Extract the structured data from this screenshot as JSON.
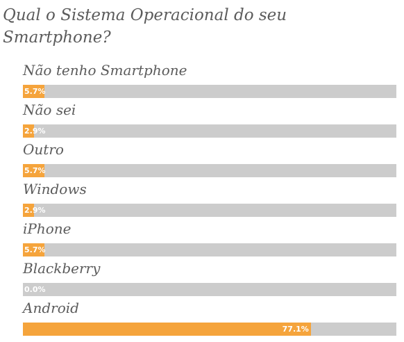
{
  "title": "Qual o Sistema Operacional do seu Smartphone?",
  "colors": {
    "fill": "#f5a43c",
    "track": "#cccccc",
    "text": "#5b5b5b",
    "label_on_bar": "#ffffff"
  },
  "chart_data": {
    "type": "bar",
    "orientation": "horizontal",
    "title": "Qual o Sistema Operacional do seu Smartphone?",
    "xlim": [
      0,
      100
    ],
    "categories": [
      "Não tenho Smartphone",
      "Não sei",
      "Outro",
      "Windows",
      "iPhone",
      "Blackberry",
      "Android"
    ],
    "values": [
      5.7,
      2.9,
      5.7,
      2.9,
      5.7,
      0.0,
      77.1
    ],
    "value_labels": [
      "5.7%",
      "2.9%",
      "5.7%",
      "2.9%",
      "5.7%",
      "0.0%",
      "77.1%"
    ]
  }
}
